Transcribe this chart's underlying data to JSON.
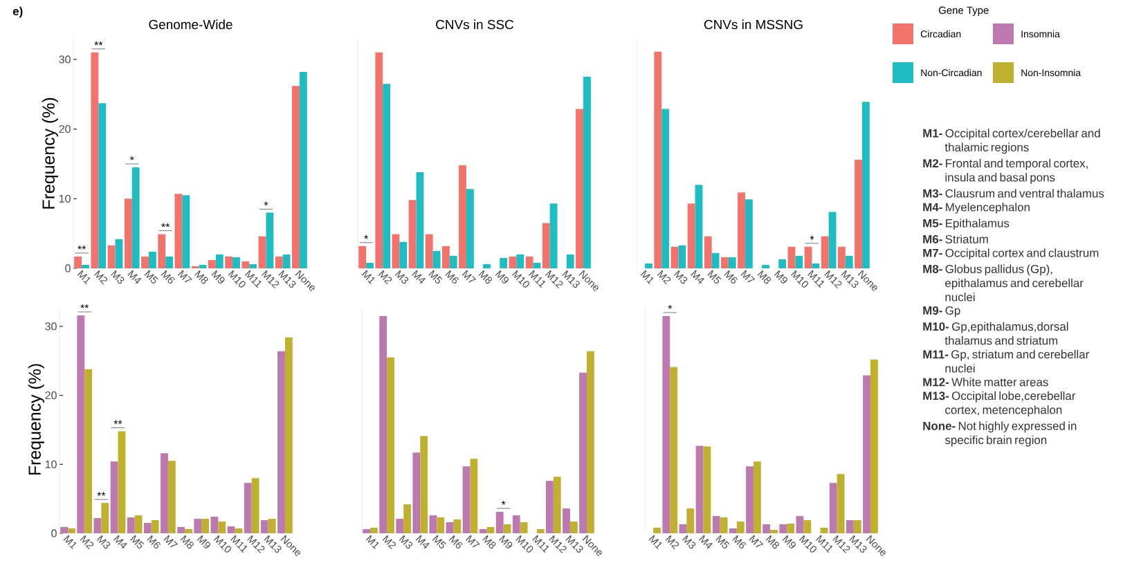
{
  "chart_data": [
    {
      "type": "bar",
      "title": "Genome-Wide",
      "ylabel": "Frequency (%)",
      "categories": [
        "M1",
        "M2",
        "M3",
        "M4",
        "M5",
        "M6",
        "M7",
        "M8",
        "M9",
        "M10",
        "M11",
        "M12",
        "M13",
        "None"
      ],
      "ylim": [
        0,
        33
      ],
      "yticks": [
        0,
        10,
        20,
        30
      ],
      "series": [
        {
          "color": "#f1736b",
          "values": [
            1.7,
            31.0,
            3.3,
            10.0,
            1.7,
            4.9,
            10.7,
            0.3,
            1.2,
            1.7,
            1.0,
            4.6,
            1.7,
            26.2
          ]
        },
        {
          "color": "#1fbdc2",
          "values": [
            0.5,
            23.7,
            4.2,
            14.5,
            2.4,
            1.7,
            10.5,
            0.5,
            2.0,
            1.6,
            0.6,
            8.0,
            2.0,
            28.2
          ]
        }
      ],
      "annotations": [
        "e)",
        {
          "text": "**",
          "x": "M1",
          "y": 1.7
        },
        {
          "text": "**",
          "x": "M2",
          "y": 31.0
        },
        {
          "text": "*",
          "x": "M4",
          "y": 14.5
        },
        {
          "text": "**",
          "x": "M6",
          "y": 4.9
        },
        {
          "text": "*",
          "x": "M12",
          "y": 8.0
        }
      ]
    },
    {
      "type": "bar",
      "title": "CNVs in SSC",
      "categories": [
        "M1",
        "M2",
        "M3",
        "M4",
        "M5",
        "M6",
        "M7",
        "M8",
        "M9",
        "M10",
        "M11",
        "M12",
        "M13",
        "None"
      ],
      "ylim": [
        0,
        33
      ],
      "yticks": [
        0,
        10,
        20,
        30
      ],
      "tick_labels": "x",
      "series": [
        {
          "color": "#f1736b",
          "values": [
            3.2,
            31.0,
            4.9,
            9.8,
            4.9,
            3.2,
            14.8,
            0,
            0,
            1.7,
            1.7,
            6.5,
            0,
            22.9
          ]
        },
        {
          "color": "#1fbdc2",
          "values": [
            0.8,
            26.5,
            3.8,
            13.8,
            2.5,
            1.8,
            11.4,
            0.6,
            1.5,
            2.0,
            0.8,
            9.3,
            2.0,
            27.5
          ]
        }
      ],
      "annotations": [
        {
          "text": "*",
          "x": "M1",
          "y": 3.2
        }
      ]
    },
    {
      "type": "bar",
      "title": "CNVs in MSSNG",
      "categories": [
        "M1",
        "M2",
        "M3",
        "M4",
        "M5",
        "M6",
        "M7",
        "M8",
        "M9",
        "M10",
        "M11",
        "M12",
        "M13",
        "None"
      ],
      "ylim": [
        0,
        33
      ],
      "yticks": [
        0,
        10,
        20,
        30
      ],
      "tick_labels": "x",
      "legend": "right",
      "legend_title": "Gene Type",
      "series": [
        {
          "name": "Circadian",
          "color": "#f1736b",
          "values": [
            0,
            31.1,
            3.1,
            9.3,
            4.6,
            1.6,
            10.9,
            0,
            0,
            3.1,
            3.1,
            4.6,
            3.1,
            15.6
          ]
        },
        {
          "name": "Non-Circadian",
          "color": "#1fbdc2",
          "values": [
            0.7,
            22.9,
            3.3,
            12.0,
            2.2,
            1.6,
            9.9,
            0.5,
            1.3,
            1.8,
            0.7,
            8.1,
            1.8,
            23.9
          ]
        }
      ],
      "annotations": [
        {
          "text": "*",
          "x": "M11",
          "y": 3.1
        }
      ]
    },
    {
      "type": "bar",
      "ylabel": "Frequency (%)",
      "categories": [
        "M1",
        "M2",
        "M3",
        "M4",
        "M5",
        "M6",
        "M7",
        "M8",
        "M9",
        "M10",
        "M11",
        "M12",
        "M13",
        "None"
      ],
      "ylim": [
        0,
        33
      ],
      "yticks": [
        0,
        10,
        20,
        30
      ],
      "series": [
        {
          "color": "#bc79b0",
          "values": [
            0.9,
            31.6,
            2.2,
            10.4,
            2.3,
            1.5,
            11.6,
            0.9,
            2.1,
            2.4,
            1.0,
            7.3,
            1.9,
            26.4
          ]
        },
        {
          "color": "#c0b030",
          "values": [
            0.7,
            23.8,
            4.4,
            14.8,
            2.6,
            1.9,
            10.5,
            0.6,
            2.1,
            1.7,
            0.7,
            8.0,
            2.1,
            28.4
          ]
        }
      ],
      "annotations": [
        {
          "text": "**",
          "x": "M2",
          "y": 31.6
        },
        {
          "text": "**",
          "x": "M3",
          "y": 4.4
        },
        {
          "text": "**",
          "x": "M4",
          "y": 14.8
        }
      ]
    },
    {
      "type": "bar",
      "categories": [
        "M1",
        "M2",
        "M3",
        "M4",
        "M5",
        "M6",
        "M7",
        "M8",
        "M9",
        "M10",
        "M11",
        "M12",
        "M13",
        "None"
      ],
      "ylim": [
        0,
        33
      ],
      "yticks": [
        0,
        10,
        20,
        30
      ],
      "tick_labels": "x",
      "series": [
        {
          "color": "#bc79b0",
          "values": [
            0.6,
            31.5,
            2.1,
            11.7,
            2.6,
            1.6,
            9.7,
            0.6,
            3.1,
            2.6,
            0,
            7.6,
            3.6,
            23.3
          ]
        },
        {
          "color": "#c0b030",
          "values": [
            0.8,
            25.5,
            4.2,
            14.1,
            2.3,
            2.0,
            10.8,
            0.9,
            1.3,
            1.6,
            0.6,
            8.2,
            1.7,
            26.4
          ]
        }
      ],
      "annotations": [
        {
          "text": "*",
          "x": "M9",
          "y": 3.1
        }
      ]
    },
    {
      "type": "bar",
      "categories": [
        "M1",
        "M2",
        "M3",
        "M4",
        "M5",
        "M6",
        "M7",
        "M8",
        "M9",
        "M10",
        "M11",
        "M12",
        "M13",
        "None"
      ],
      "ylim": [
        0,
        33
      ],
      "yticks": [
        0,
        10,
        20,
        30
      ],
      "tick_labels": "x",
      "legend": "right",
      "series": [
        {
          "name": "Insomnia",
          "color": "#bc79b0",
          "values": [
            0,
            31.5,
            1.3,
            12.7,
            2.5,
            0.7,
            9.7,
            1.3,
            1.3,
            2.5,
            0,
            7.3,
            1.9,
            22.9
          ]
        },
        {
          "name": "Non-Insomnia",
          "color": "#c0b030",
          "values": [
            0.8,
            24.1,
            3.6,
            12.6,
            2.3,
            1.7,
            10.4,
            0.5,
            1.4,
            1.9,
            0.8,
            8.6,
            1.9,
            25.2
          ]
        }
      ],
      "annotations": [
        {
          "text": "*",
          "x": "M2",
          "y": 31.5
        }
      ]
    },
    {
      "type": "other",
      "annotations": [
        "**M1-** Occipital cortex/cerebellar and thalamic regions",
        "**M2-** Frontal and temporal cortex, insula and basal pons",
        "**M3-** Clausrum and ventral thalamus",
        "**M4-** Myelencephalon",
        "**M5-** Epithalamus",
        "**M6-** Striatum",
        "**M7-** Occipital cortex and claustrum",
        "**M8-** Globus pallidus (Gp), epithalamus and cerebellar nuclei",
        "**M9-** Gp",
        "**M10-** Gp,epithalamus,dorsal thalamus and striatum",
        "**M11-** Gp, striatum and cerebellar nuclei",
        "**M12-** White matter areas",
        "**M13-** Occipital lobe,cerebellar cortex, metencephalon",
        "**None-** Not highly expressed in specific brain region"
      ]
    }
  ]
}
